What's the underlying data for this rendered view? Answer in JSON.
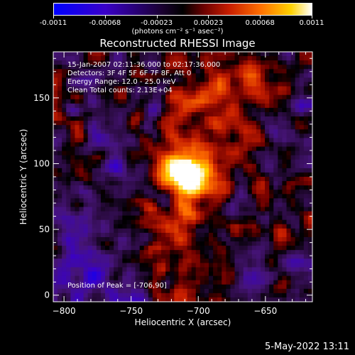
{
  "colorbar": {
    "ticks": [
      "-0.0011",
      "-0.00068",
      "-0.00023",
      "0.00023",
      "0.00068",
      "0.0011"
    ],
    "units": "(photons cm⁻² s⁻¹ asec⁻²)"
  },
  "title": "Reconstructed RHESSI Image",
  "info": {
    "line1": "15-Jan-2007 02:11:36.000 to 02:17:36.000",
    "line2": "Detectors: 3F 4F 5F 6F 7F 8F, Att 0",
    "line3": "Energy Range: 12.0 - 25.0 keV",
    "line4": "Clean     Total counts: 2.13E+04"
  },
  "peak_label": "Position of Peak = [-706,90]",
  "timestamp": "5-May-2022 13:11",
  "chart_data": {
    "type": "heatmap",
    "title": "Reconstructed RHESSI Image",
    "xlabel": "Heliocentric X (arcsec)",
    "ylabel": "Heliocentric Y (arcsec)",
    "xlim": [
      -808,
      -615
    ],
    "ylim": [
      -5,
      185
    ],
    "xticks": [
      -800,
      -750,
      -700,
      -650
    ],
    "yticks": [
      0,
      50,
      100,
      150
    ],
    "color_range": [
      -0.0011,
      0.0011
    ],
    "peak": [
      -706,
      90
    ],
    "colors": {
      "negative": "#3a00c8",
      "zero": "#000000",
      "positive_low": "#c81e00",
      "positive_mid": "#ff6e00",
      "positive_high": "#ffd200",
      "max": "#ffffff"
    }
  }
}
